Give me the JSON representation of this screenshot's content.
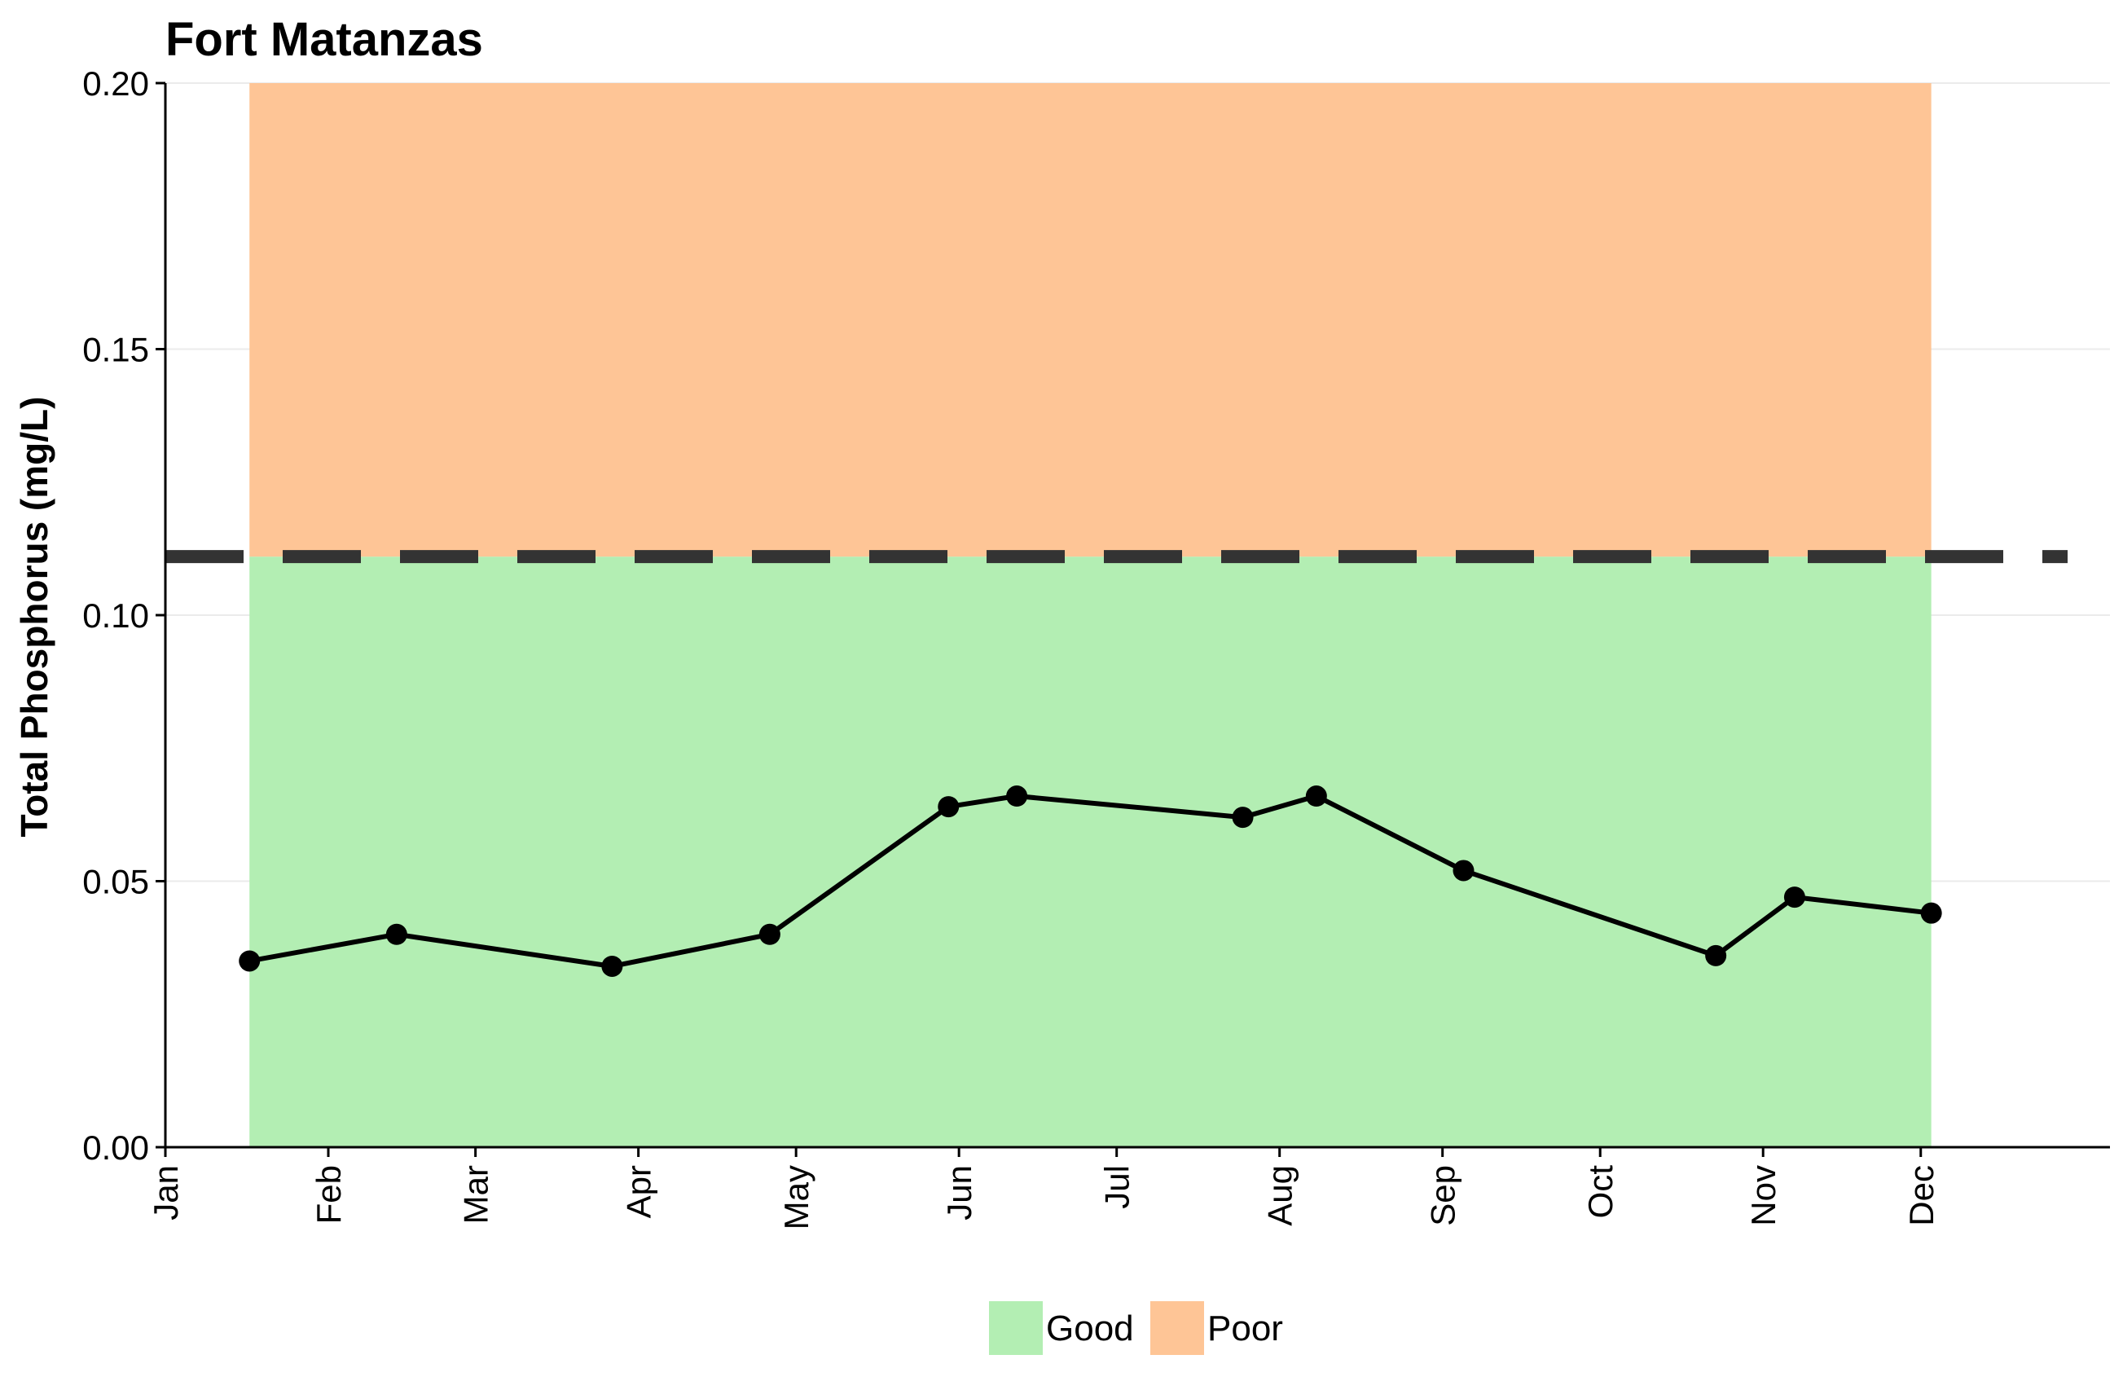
{
  "chart_data": {
    "type": "line",
    "title": "Fort Matanzas",
    "xlabel": "",
    "ylabel": "Total Phosphorus (mg/L)",
    "ylim": [
      0,
      0.2
    ],
    "yticks": [
      0.0,
      0.05,
      0.1,
      0.15,
      0.2
    ],
    "ytick_labels": [
      "0.00",
      "0.05",
      "0.10",
      "0.15",
      "0.20"
    ],
    "xlim_day": [
      0,
      370
    ],
    "xticks_day": [
      0,
      31,
      59,
      90,
      120,
      151,
      181,
      212,
      243,
      273,
      304,
      334
    ],
    "xtick_labels": [
      "Jan",
      "Feb",
      "Mar",
      "Apr",
      "May",
      "Jun",
      "Jul",
      "Aug",
      "Sep",
      "Oct",
      "Nov",
      "Dec"
    ],
    "threshold": 0.111,
    "bands": [
      {
        "name": "Good",
        "color": "#b3eeb3",
        "from": 0,
        "to": 0.111,
        "x_start_day": 16,
        "x_end_day": 336
      },
      {
        "name": "Poor",
        "color": "#fec596",
        "from": 0.111,
        "to": 0.2,
        "x_start_day": 16,
        "x_end_day": 336
      }
    ],
    "series": [
      {
        "name": "Total Phosphorus",
        "color": "#000000",
        "x_day": [
          16,
          44,
          85,
          115,
          149,
          162,
          205,
          219,
          247,
          295,
          310,
          336
        ],
        "values": [
          0.035,
          0.04,
          0.034,
          0.04,
          0.064,
          0.066,
          0.062,
          0.066,
          0.052,
          0.036,
          0.047,
          0.044
        ]
      }
    ],
    "legend": {
      "position": "bottom",
      "entries": [
        {
          "label": "Good",
          "color": "#b3eeb3"
        },
        {
          "label": "Poor",
          "color": "#fec596"
        }
      ]
    },
    "grid": true
  }
}
